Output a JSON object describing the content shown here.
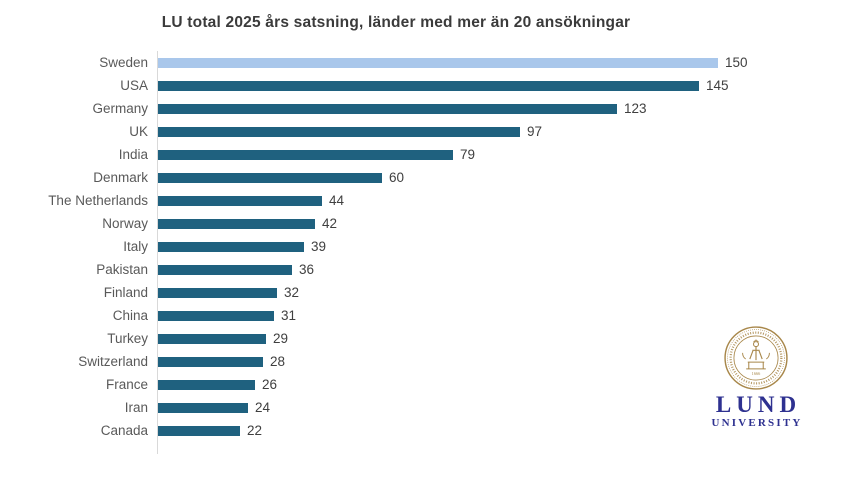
{
  "title": "LU total 2025 års satsning, länder med mer än 20 ansökningar",
  "chart_data": {
    "type": "bar",
    "orientation": "horizontal",
    "title": "LU total 2025 års satsning, länder med mer än 20 ansökningar",
    "categories": [
      "Sweden",
      "USA",
      "Germany",
      "UK",
      "India",
      "Denmark",
      "The Netherlands",
      "Norway",
      "Italy",
      "Pakistan",
      "Finland",
      "China",
      "Turkey",
      "Switzerland",
      "France",
      "Iran",
      "Canada"
    ],
    "values": [
      150,
      145,
      123,
      97,
      79,
      60,
      44,
      42,
      39,
      36,
      32,
      31,
      29,
      28,
      26,
      24,
      22
    ],
    "xlabel": "",
    "ylabel": "",
    "xlim": [
      0,
      150
    ],
    "grid": false,
    "legend": false,
    "data_labels": true,
    "bar_color": "#1F617F",
    "highlight_color": "#A9C7EB",
    "highlight_category": "Sweden",
    "axis_line_color": "#D9D9D9"
  },
  "colors": {
    "title_text": "#3B3B3B",
    "category_text": "#595959",
    "value_text": "#3F3F3F",
    "logo_blue": "#2E3190",
    "seal_gold": "#A8874A"
  },
  "logo": {
    "name": "LUND",
    "subname": "UNIVERSITY",
    "seal_year": "1666"
  }
}
